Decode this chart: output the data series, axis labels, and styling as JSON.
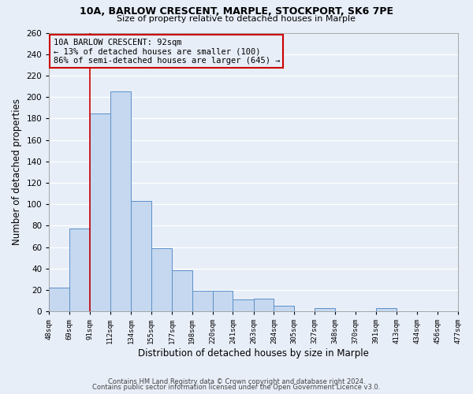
{
  "title1": "10A, BARLOW CRESCENT, MARPLE, STOCKPORT, SK6 7PE",
  "title2": "Size of property relative to detached houses in Marple",
  "xlabel": "Distribution of detached houses by size in Marple",
  "ylabel": "Number of detached properties",
  "bar_values": [
    22,
    77,
    185,
    205,
    103,
    59,
    38,
    19,
    19,
    11,
    12,
    5,
    0,
    3,
    0,
    0,
    3,
    0,
    0,
    0
  ],
  "bin_left": [
    48,
    69,
    91,
    112,
    134,
    155,
    177,
    198,
    220,
    241,
    263,
    284,
    305,
    327,
    348,
    370,
    391,
    413,
    434,
    456
  ],
  "bin_right": [
    69,
    91,
    112,
    134,
    155,
    177,
    198,
    220,
    241,
    263,
    284,
    305,
    327,
    348,
    370,
    391,
    413,
    434,
    456,
    477
  ],
  "tick_labels": [
    "48sqm",
    "69sqm",
    "91sqm",
    "112sqm",
    "134sqm",
    "155sqm",
    "177sqm",
    "198sqm",
    "220sqm",
    "241sqm",
    "263sqm",
    "284sqm",
    "305sqm",
    "327sqm",
    "348sqm",
    "370sqm",
    "391sqm",
    "413sqm",
    "434sqm",
    "456sqm",
    "477sqm"
  ],
  "all_ticks": [
    48,
    69,
    91,
    112,
    134,
    155,
    177,
    198,
    220,
    241,
    263,
    284,
    305,
    327,
    348,
    370,
    391,
    413,
    434,
    456,
    477
  ],
  "bar_color": "#c5d8ef",
  "bar_edge_color": "#5b8fc8",
  "property_line_x": 91,
  "property_line_color": "#cc0000",
  "annotation_text": "10A BARLOW CRESCENT: 92sqm\n← 13% of detached houses are smaller (100)\n86% of semi-detached houses are larger (645) →",
  "annotation_box_color": "#cc0000",
  "ylim": [
    0,
    260
  ],
  "yticks": [
    0,
    20,
    40,
    60,
    80,
    100,
    120,
    140,
    160,
    180,
    200,
    220,
    240,
    260
  ],
  "footer1": "Contains HM Land Registry data © Crown copyright and database right 2024.",
  "footer2": "Contains public sector information licensed under the Open Government Licence v3.0.",
  "bg_color": "#e8eef8",
  "grid_color": "#ffffff"
}
